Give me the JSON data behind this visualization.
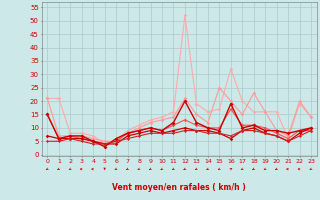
{
  "bg_color": "#cce8e8",
  "grid_color": "#aacaca",
  "xlabel": "Vent moyen/en rafales ( km/h )",
  "ylabel_ticks": [
    0,
    5,
    10,
    15,
    20,
    25,
    30,
    35,
    40,
    45,
    50,
    55
  ],
  "xticks": [
    0,
    1,
    2,
    3,
    4,
    5,
    6,
    7,
    8,
    9,
    10,
    11,
    12,
    13,
    14,
    15,
    16,
    17,
    18,
    19,
    20,
    21,
    22,
    23
  ],
  "xlim": [
    -0.5,
    23.5
  ],
  "ylim": [
    -0.5,
    57
  ],
  "series": [
    {
      "x": [
        0,
        1,
        2,
        3,
        4,
        5,
        6,
        7,
        8,
        9,
        10,
        11,
        12,
        13,
        14,
        15,
        16,
        17,
        18,
        19,
        20,
        21,
        22,
        23
      ],
      "y": [
        21,
        21,
        8,
        8,
        7,
        4,
        5,
        9,
        11,
        13,
        14,
        16,
        52,
        19,
        16,
        17,
        32,
        20,
        16,
        16,
        16,
        6,
        19,
        14
      ],
      "color": "#ffaaaa",
      "alpha": 1.0,
      "lw": 0.8,
      "marker": "D",
      "ms": 1.8
    },
    {
      "x": [
        0,
        1,
        2,
        3,
        4,
        5,
        6,
        7,
        8,
        9,
        10,
        11,
        12,
        13,
        14,
        15,
        16,
        17,
        18,
        19,
        20,
        21,
        22,
        23
      ],
      "y": [
        21,
        7,
        7,
        7,
        6,
        5,
        5,
        8,
        10,
        12,
        13,
        14,
        21,
        15,
        12,
        25,
        20,
        15,
        23,
        16,
        9,
        7,
        20,
        14
      ],
      "color": "#ff9999",
      "alpha": 1.0,
      "lw": 0.8,
      "marker": "D",
      "ms": 1.8
    },
    {
      "x": [
        0,
        1,
        2,
        3,
        4,
        5,
        6,
        7,
        8,
        9,
        10,
        11,
        12,
        13,
        14,
        15,
        16,
        17,
        18,
        19,
        20,
        21,
        22,
        23
      ],
      "y": [
        15,
        6,
        7,
        6,
        5,
        4,
        5,
        8,
        9,
        10,
        9,
        11,
        13,
        11,
        10,
        10,
        17,
        11,
        11,
        10,
        8,
        6,
        9,
        9
      ],
      "color": "#ee5555",
      "alpha": 1.0,
      "lw": 0.8,
      "marker": "D",
      "ms": 1.8
    },
    {
      "x": [
        0,
        1,
        2,
        3,
        4,
        5,
        6,
        7,
        8,
        9,
        10,
        11,
        12,
        13,
        14,
        15,
        16,
        17,
        18,
        19,
        20,
        21,
        22,
        23
      ],
      "y": [
        15,
        6,
        7,
        7,
        5,
        3,
        6,
        8,
        9,
        10,
        9,
        12,
        20,
        12,
        10,
        9,
        19,
        10,
        11,
        9,
        9,
        8,
        9,
        10
      ],
      "color": "#cc0000",
      "alpha": 1.0,
      "lw": 1.0,
      "marker": "D",
      "ms": 2.0
    },
    {
      "x": [
        0,
        1,
        2,
        3,
        4,
        5,
        6,
        7,
        8,
        9,
        10,
        11,
        12,
        13,
        14,
        15,
        16,
        17,
        18,
        19,
        20,
        21,
        22,
        23
      ],
      "y": [
        7,
        6,
        6,
        6,
        5,
        4,
        4,
        7,
        8,
        9,
        8,
        9,
        10,
        9,
        9,
        8,
        6,
        9,
        10,
        8,
        7,
        5,
        8,
        10
      ],
      "color": "#cc0000",
      "alpha": 1.0,
      "lw": 0.9,
      "marker": "D",
      "ms": 1.8
    },
    {
      "x": [
        0,
        1,
        2,
        3,
        4,
        5,
        6,
        7,
        8,
        9,
        10,
        11,
        12,
        13,
        14,
        15,
        16,
        17,
        18,
        19,
        20,
        21,
        22,
        23
      ],
      "y": [
        5,
        5,
        6,
        5,
        4,
        4,
        5,
        6,
        7,
        8,
        8,
        8,
        9,
        9,
        8,
        8,
        7,
        9,
        9,
        8,
        7,
        5,
        7,
        9
      ],
      "color": "#cc2222",
      "alpha": 1.0,
      "lw": 0.8,
      "marker": "D",
      "ms": 1.5
    }
  ],
  "wind_angles_deg": [
    225,
    225,
    225,
    270,
    270,
    180,
    225,
    225,
    225,
    225,
    225,
    225,
    225,
    225,
    225,
    225,
    45,
    225,
    225,
    225,
    225,
    270,
    270,
    225
  ]
}
